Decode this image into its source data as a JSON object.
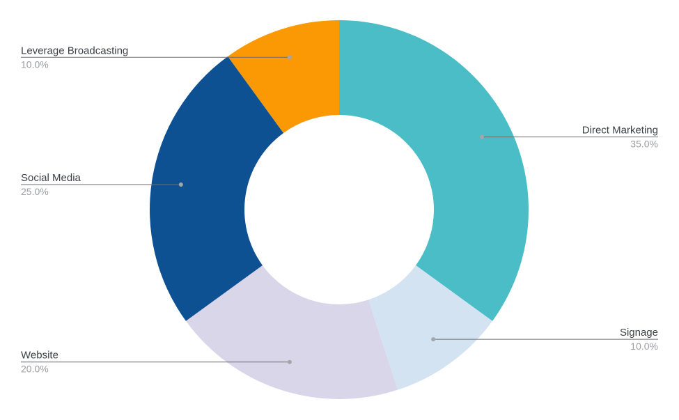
{
  "chart_data": {
    "type": "pie",
    "variant": "donut",
    "title": "",
    "start_angle_deg": 0,
    "direction": "clockwise",
    "slices": [
      {
        "label": "Direct Marketing",
        "value": 35.0,
        "value_label": "35.0%",
        "color": "#4abdc6",
        "label_side": "right"
      },
      {
        "label": "Signage",
        "value": 10.0,
        "value_label": "10.0%",
        "color": "#d3e3f2",
        "label_side": "right"
      },
      {
        "label": "Website",
        "value": 20.0,
        "value_label": "20.0%",
        "color": "#dad6e9",
        "label_side": "left"
      },
      {
        "label": "Social Media",
        "value": 25.0,
        "value_label": "25.0%",
        "color": "#0e5193",
        "label_side": "left"
      },
      {
        "label": "Leverage  Broadcasting",
        "value": 10.0,
        "value_label": "10.0%",
        "color": "#fa9904",
        "label_side": "left"
      }
    ]
  }
}
